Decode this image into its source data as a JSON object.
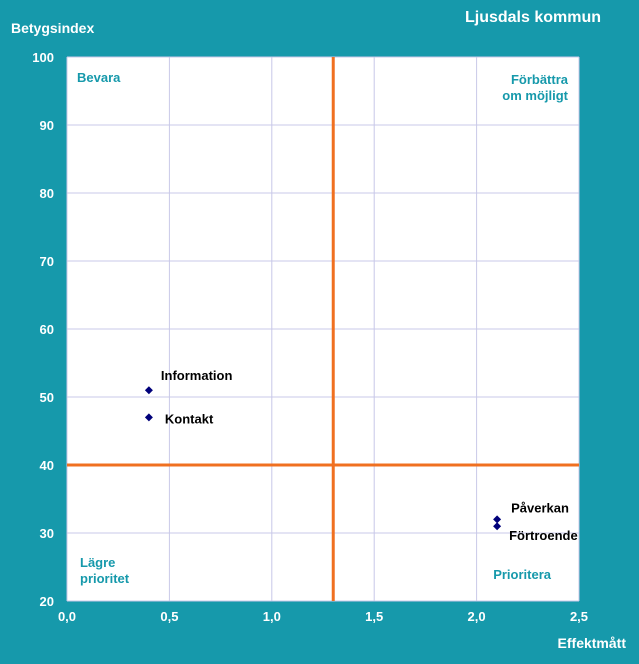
{
  "chart_data": {
    "type": "scatter",
    "title": "Ljusdals kommun",
    "xlabel": "Effektmått",
    "ylabel": "Betygsindex",
    "xlim": [
      0,
      2.5
    ],
    "ylim": [
      20,
      100
    ],
    "xticks": [
      0,
      0.5,
      1.0,
      1.5,
      2.0,
      2.5
    ],
    "xtick_labels": [
      "0,0",
      "0,5",
      "1,0",
      "1,5",
      "2,0",
      "2,5"
    ],
    "yticks": [
      20,
      30,
      40,
      50,
      60,
      70,
      80,
      90,
      100
    ],
    "ytick_labels": [
      "20",
      "30",
      "40",
      "50",
      "60",
      "70",
      "80",
      "90",
      "100"
    ],
    "grid": true,
    "reference_lines": {
      "x": 1.3,
      "y": 40,
      "color": "#f07020"
    },
    "marker_color": "#00007a",
    "points": [
      {
        "label": "Information",
        "x": 0.4,
        "y": 51
      },
      {
        "label": "Kontakt",
        "x": 0.4,
        "y": 47
      },
      {
        "label": "Påverkan",
        "x": 2.1,
        "y": 32
      },
      {
        "label": "Förtroende",
        "x": 2.1,
        "y": 31
      }
    ],
    "quadrant_labels": {
      "top_left": [
        "Bevara"
      ],
      "top_right": [
        "Förbättra",
        "om möjligt"
      ],
      "bottom_left": [
        "Lägre",
        "prioritet"
      ],
      "bottom_right": [
        "Prioritera"
      ]
    }
  }
}
